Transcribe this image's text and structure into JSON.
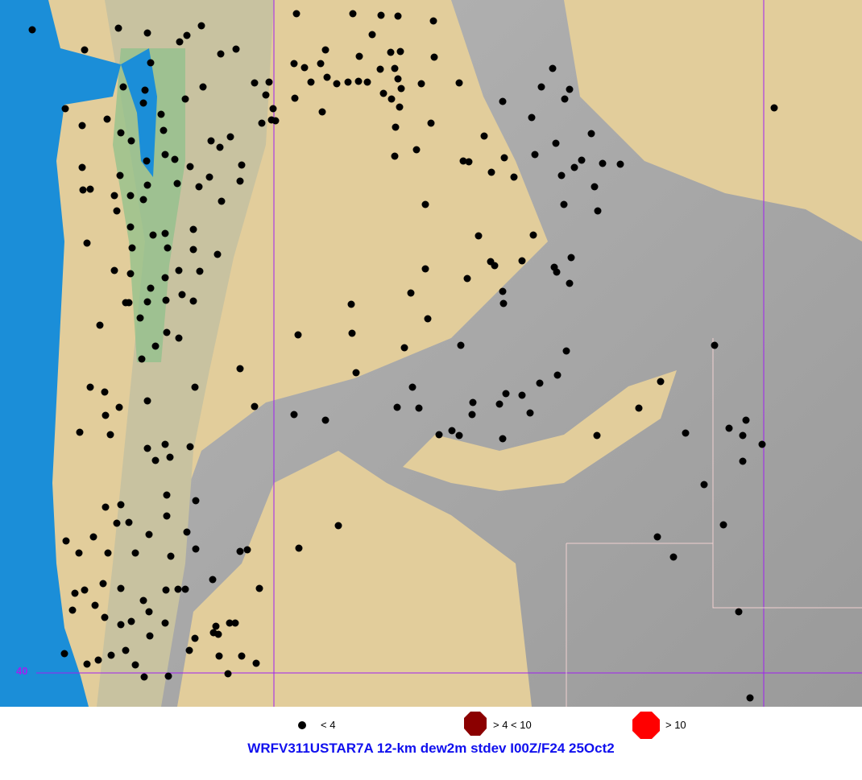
{
  "map": {
    "latitude_label": "40",
    "colors": {
      "ocean": "#1b8ed8",
      "lowland": "#e3cf9e",
      "basin": "#e8d7a6",
      "mountain": "#a8a8a8",
      "forest": "#7fb87f",
      "gridline": "#a020f0",
      "station": "#000000"
    }
  },
  "legend": {
    "items": [
      {
        "label": "< 4",
        "color": "#000000",
        "icon": "small-dot"
      },
      {
        "label": "> 4 < 10",
        "color": "#8b0000",
        "icon": "octagon"
      },
      {
        "label": "> 10",
        "color": "#ff0000",
        "icon": "octagon"
      }
    ]
  },
  "title": "WRFV311USTAR7A 12-km dew2m stdev I00Z/F24 25Oct2"
}
